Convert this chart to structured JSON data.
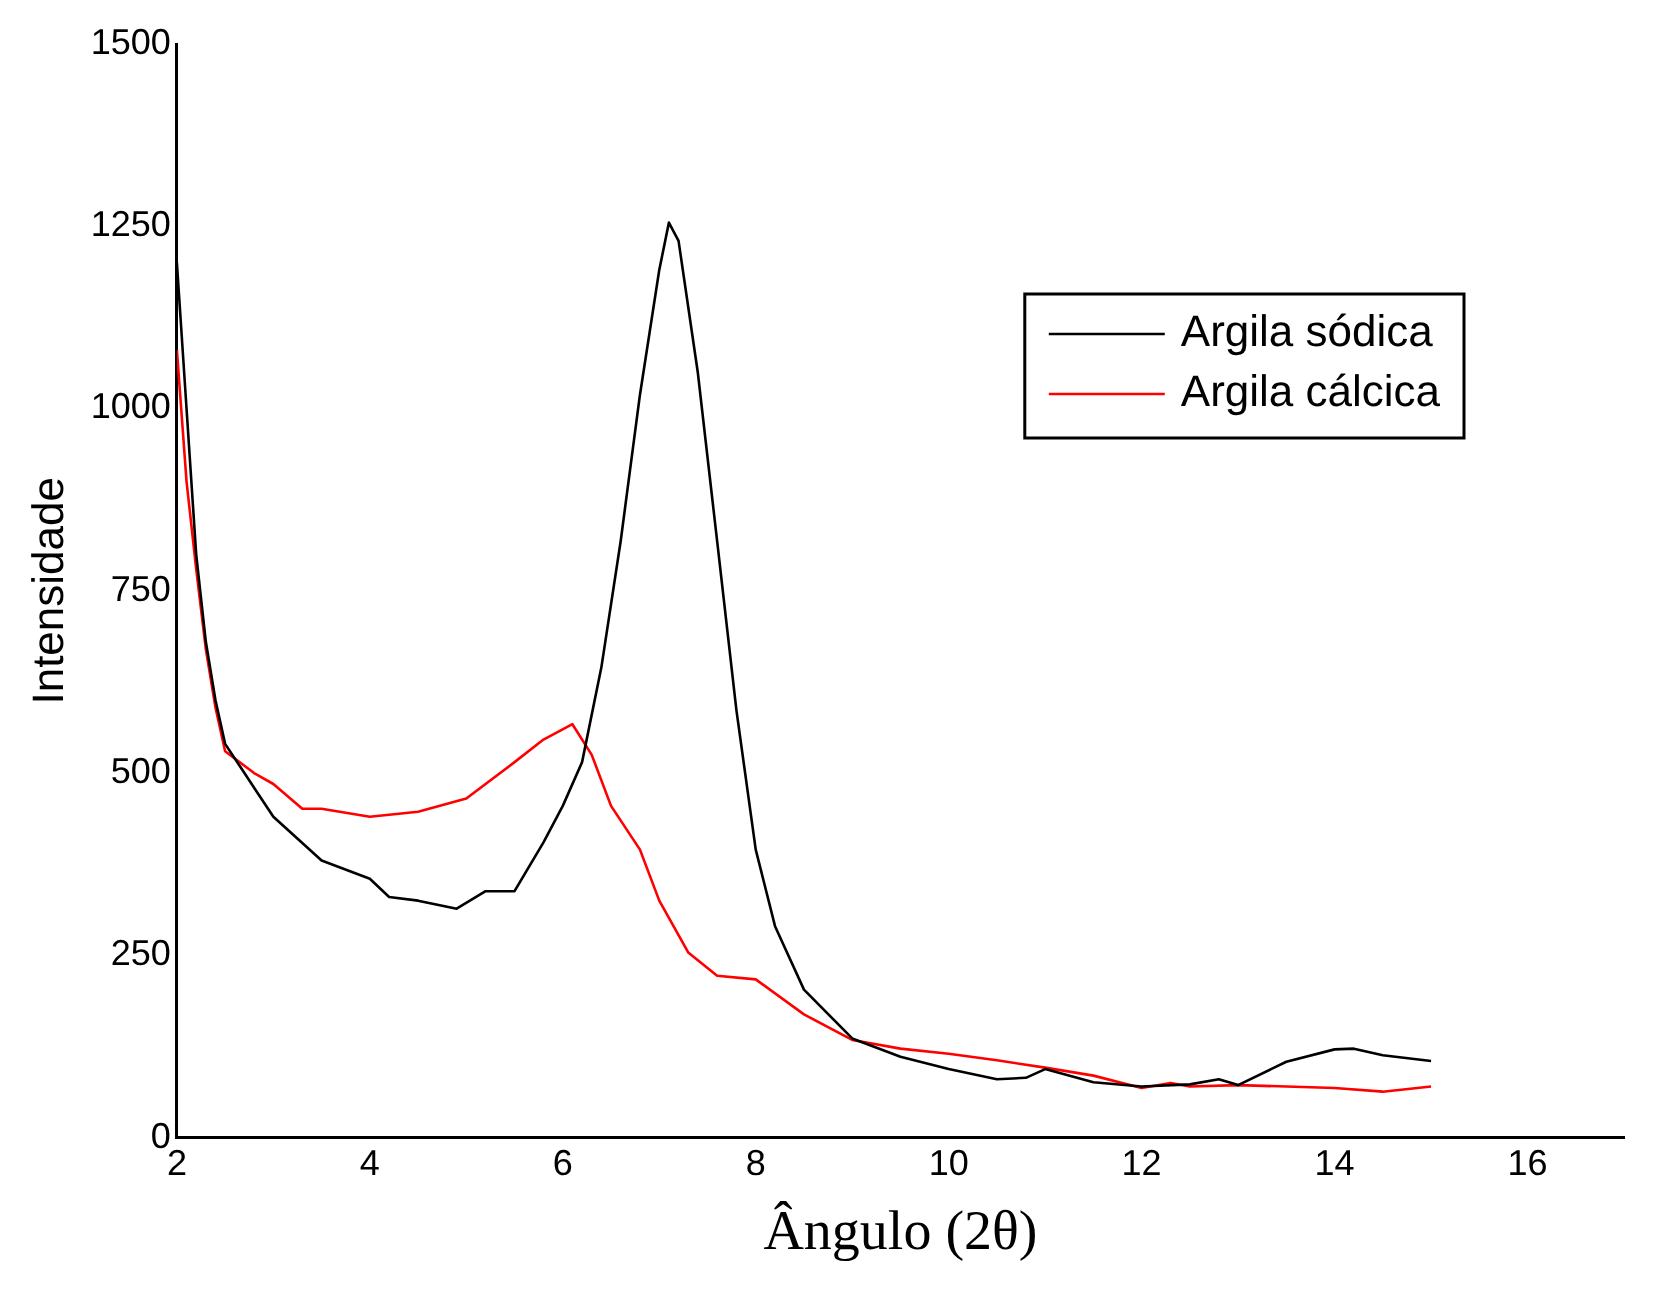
{
  "chart_data": {
    "type": "line",
    "xlabel": "Ângulo (2θ)",
    "ylabel": "Intensidade",
    "xlim": [
      2,
      17
    ],
    "xticks": [
      2,
      4,
      6,
      8,
      10,
      12,
      14,
      16
    ],
    "ylim": [
      0,
      1500
    ],
    "yticks": [
      0,
      250,
      500,
      750,
      1000,
      1250,
      1500
    ],
    "grid": false,
    "legend": "top right",
    "marker": "none",
    "line_style": "solid",
    "series": [
      {
        "name": "Argila sódica",
        "color": "#000000",
        "x": [
          2.0,
          2.1,
          2.2,
          2.3,
          2.4,
          2.5,
          2.7,
          3.0,
          3.5,
          4.0,
          4.2,
          4.5,
          4.9,
          5.2,
          5.5,
          5.8,
          6.0,
          6.2,
          6.4,
          6.6,
          6.8,
          7.0,
          7.1,
          7.2,
          7.4,
          7.6,
          7.8,
          8.0,
          8.2,
          8.5,
          9.0,
          9.5,
          10.0,
          10.5,
          10.8,
          11.0,
          11.5,
          12.0,
          12.5,
          12.8,
          13.0,
          13.5,
          14.0,
          14.2,
          14.5,
          15.0
        ],
        "values": [
          1200,
          1000,
          800,
          680,
          600,
          540,
          500,
          440,
          380,
          355,
          330,
          325,
          314,
          338,
          338,
          405,
          455,
          515,
          645,
          818,
          1019,
          1190,
          1255,
          1230,
          1049,
          818,
          586,
          395,
          290,
          203,
          136,
          111,
          94,
          80,
          82,
          94,
          76,
          70,
          73,
          80,
          72,
          104,
          121,
          122,
          113,
          105
        ]
      },
      {
        "name": "Argila cálcica",
        "color": "#ff0000",
        "x": [
          2.0,
          2.1,
          2.2,
          2.3,
          2.4,
          2.5,
          2.7,
          2.8,
          3.0,
          3.3,
          3.5,
          4.0,
          4.5,
          5.0,
          5.5,
          5.8,
          6.1,
          6.3,
          6.5,
          6.8,
          7.0,
          7.3,
          7.6,
          8.0,
          8.5,
          9.0,
          9.5,
          10.0,
          10.5,
          11.0,
          11.5,
          12.0,
          12.3,
          12.5,
          13.0,
          13.5,
          14.0,
          14.5,
          15.0
        ],
        "values": [
          1080,
          900,
          780,
          670,
          590,
          530,
          510,
          500,
          485,
          451,
          451,
          440,
          447,
          465,
          515,
          546,
          567,
          525,
          455,
          395,
          325,
          254,
          222,
          217,
          169,
          134,
          122,
          115,
          106,
          96,
          85,
          68,
          75,
          70,
          72,
          70,
          68,
          63,
          70
        ]
      }
    ]
  }
}
